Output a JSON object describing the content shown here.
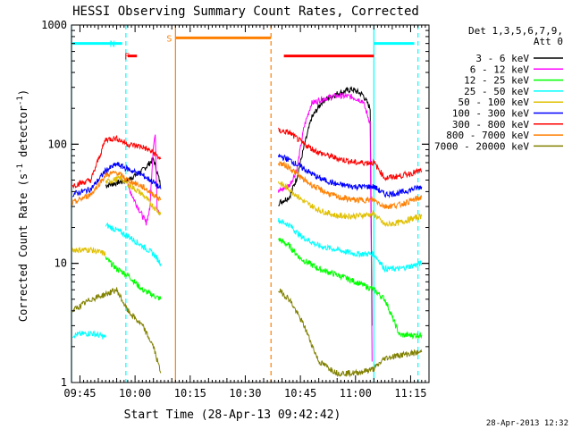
{
  "chart_data": {
    "type": "line",
    "title": "HESSI Observing Summary Count Rates, Corrected",
    "xlabel": "Start Time (28-Apr-13 09:42:42)",
    "ylabel": "Corrected Count Rate (s⁻¹ detector⁻¹)",
    "ylabel_main": "Corrected Count Rate (s",
    "ylabel_sup1": "-1",
    "ylabel_mid": " detector",
    "ylabel_sup2": "-1",
    "ylabel_end": ")",
    "yscale": "log",
    "ylim": [
      1,
      1000
    ],
    "xlim": [
      "09:42:42",
      "11:20:00"
    ],
    "x_tick_labels": [
      "09:45",
      "10:00",
      "10:15",
      "10:30",
      "10:45",
      "11:00",
      "11:15"
    ],
    "y_tick_labels": [
      "1",
      "10",
      "100",
      "1000"
    ],
    "grid": false,
    "legend_title": [
      "Det 1,3,5,6,7,9,",
      "Att 0"
    ],
    "timestamp": "28-Apr-2013 12:32",
    "flags": [
      {
        "label": "F",
        "color": "#ff0000",
        "start": "09:58:00",
        "end": "10:00:30",
        "level": 550
      },
      {
        "label": "N",
        "color": "#00ffff",
        "start": "09:43:00",
        "end": "09:56:30",
        "level": 700
      },
      {
        "label": "S",
        "color": "#ff7f00",
        "start": "10:11:00",
        "end": "10:37:00",
        "level": 780
      },
      {
        "label": "",
        "color": "#ff0000",
        "start": "10:40:30",
        "end": "11:05:00",
        "level": 550
      },
      {
        "label": "",
        "color": "#00ffff",
        "start": "11:05:00",
        "end": "11:16:00",
        "level": 700
      }
    ],
    "night_lines": [
      {
        "time": "09:42:42",
        "color": "#00ffff",
        "style": "solid"
      },
      {
        "time": "09:57:30",
        "color": "#00ffff",
        "style": "dashed"
      },
      {
        "time": "10:11:00",
        "color": "#ff7f00",
        "style": "solid"
      },
      {
        "time": "10:37:00",
        "color": "#ff7f00",
        "style": "dashed"
      },
      {
        "time": "11:05:00",
        "color": "#00ffff",
        "style": "solid"
      },
      {
        "time": "11:17:00",
        "color": "#00ffff",
        "style": "dashed"
      }
    ],
    "series": [
      {
        "name": "3 - 6 keV",
        "color": "#000000",
        "segments": [
          [
            [
              "09:52",
              45
            ],
            [
              "09:58",
              50
            ],
            [
              "10:02",
              60
            ],
            [
              "10:05",
              75
            ],
            [
              "10:07",
              45
            ]
          ],
          [
            [
              "10:39",
              32
            ],
            [
              "10:42",
              36
            ],
            [
              "10:44",
              52
            ],
            [
              "10:46",
              95
            ],
            [
              "10:48",
              165
            ],
            [
              "10:51",
              230
            ],
            [
              "10:55",
              265
            ],
            [
              "10:59",
              290
            ],
            [
              "11:02",
              260
            ],
            [
              "11:04",
              200
            ],
            [
              "11:04:30",
              3
            ]
          ]
        ]
      },
      {
        "name": "6 - 12 keV",
        "color": "#ff00ff",
        "segments": [
          [
            [
              "09:58",
              45
            ],
            [
              "10:00",
              33
            ],
            [
              "10:02",
              25
            ],
            [
              "10:03",
              22
            ],
            [
              "10:04",
              28
            ],
            [
              "10:05",
              100
            ],
            [
              "10:05:30",
              120
            ],
            [
              "10:06",
              30
            ],
            [
              "10:07",
              26
            ]
          ],
          [
            [
              "10:39",
              40
            ],
            [
              "10:42",
              45
            ],
            [
              "10:44",
              60
            ],
            [
              "10:46",
              140
            ],
            [
              "10:48",
              220
            ],
            [
              "10:51",
              240
            ],
            [
              "10:55",
              255
            ],
            [
              "10:59",
              250
            ],
            [
              "11:02",
              230
            ],
            [
              "11:04",
              150
            ],
            [
              "11:04:30",
              1.5
            ]
          ]
        ]
      },
      {
        "name": "12 - 25 keV",
        "color": "#00ff00",
        "segments": [
          [
            [
              "09:52",
              11
            ],
            [
              "09:55",
              9
            ],
            [
              "09:58",
              8
            ],
            [
              "10:02",
              6
            ],
            [
              "10:07",
              5
            ]
          ],
          [
            [
              "10:39",
              16
            ],
            [
              "10:42",
              14
            ],
            [
              "10:45",
              11
            ],
            [
              "10:50",
              9
            ],
            [
              "10:55",
              8
            ],
            [
              "11:00",
              7
            ],
            [
              "11:05",
              6
            ],
            [
              "11:08",
              5
            ],
            [
              "11:12",
              2.5
            ],
            [
              "11:18",
              2.5
            ]
          ]
        ]
      },
      {
        "name": "25 - 50 keV",
        "color": "#00ffff",
        "segments": [
          [
            [
              "09:43",
              2.5
            ],
            [
              "09:48",
              2.6
            ],
            [
              "09:52",
              2.4
            ]
          ],
          [
            [
              "09:52",
              21
            ],
            [
              "09:55",
              19
            ],
            [
              "09:58",
              17
            ],
            [
              "10:02",
              14
            ],
            [
              "10:05",
              12
            ],
            [
              "10:07",
              10
            ]
          ],
          [
            [
              "10:39",
              23
            ],
            [
              "10:42",
              21
            ],
            [
              "10:45",
              17
            ],
            [
              "10:50",
              14
            ],
            [
              "10:55",
              13
            ],
            [
              "11:00",
              12
            ],
            [
              "11:05",
              12
            ],
            [
              "11:08",
              9
            ],
            [
              "11:12",
              9
            ],
            [
              "11:18",
              10
            ]
          ]
        ]
      },
      {
        "name": "50 - 100 keV",
        "color": "#e0c000",
        "segments": [
          [
            [
              "09:43",
              13
            ],
            [
              "09:48",
              13
            ],
            [
              "09:52",
              12
            ]
          ],
          [
            [
              "09:52",
              48
            ],
            [
              "09:56",
              52
            ],
            [
              "09:59",
              44
            ],
            [
              "10:02",
              38
            ],
            [
              "10:05",
              30
            ],
            [
              "10:07",
              26
            ]
          ],
          [
            [
              "10:39",
              48
            ],
            [
              "10:42",
              42
            ],
            [
              "10:46",
              33
            ],
            [
              "10:50",
              28
            ],
            [
              "10:55",
              25
            ],
            [
              "11:00",
              25
            ],
            [
              "11:05",
              26
            ],
            [
              "11:08",
              21
            ],
            [
              "11:12",
              22
            ],
            [
              "11:18",
              25
            ]
          ]
        ]
      },
      {
        "name": "100 - 300 keV",
        "color": "#0000ff",
        "segments": [
          [
            [
              "09:43",
              38
            ],
            [
              "09:48",
              42
            ],
            [
              "09:52",
              60
            ],
            [
              "09:55",
              68
            ],
            [
              "09:58",
              62
            ],
            [
              "10:02",
              55
            ],
            [
              "10:05",
              48
            ],
            [
              "10:07",
              42
            ]
          ],
          [
            [
              "10:39",
              80
            ],
            [
              "10:42",
              74
            ],
            [
              "10:46",
              62
            ],
            [
              "10:50",
              52
            ],
            [
              "10:55",
              46
            ],
            [
              "11:00",
              44
            ],
            [
              "11:05",
              44
            ],
            [
              "11:08",
              38
            ],
            [
              "11:12",
              39
            ],
            [
              "11:18",
              44
            ]
          ]
        ]
      },
      {
        "name": "300 - 800 keV",
        "color": "#ff0000",
        "segments": [
          [
            [
              "09:43",
              45
            ],
            [
              "09:48",
              50
            ],
            [
              "09:52",
              110
            ],
            [
              "09:55",
              112
            ],
            [
              "09:58",
              100
            ],
            [
              "10:02",
              95
            ],
            [
              "10:05",
              85
            ],
            [
              "10:07",
              75
            ]
          ],
          [
            [
              "10:39",
              130
            ],
            [
              "10:42",
              125
            ],
            [
              "10:46",
              100
            ],
            [
              "10:50",
              85
            ],
            [
              "10:55",
              76
            ],
            [
              "11:00",
              70
            ],
            [
              "11:05",
              70
            ],
            [
              "11:08",
              52
            ],
            [
              "11:12",
              54
            ],
            [
              "11:18",
              60
            ]
          ]
        ]
      },
      {
        "name": "800 - 7000 keV",
        "color": "#ff7f00",
        "segments": [
          [
            [
              "09:43",
              32
            ],
            [
              "09:48",
              38
            ],
            [
              "09:52",
              55
            ],
            [
              "09:55",
              58
            ],
            [
              "09:58",
              50
            ],
            [
              "10:02",
              44
            ],
            [
              "10:05",
              38
            ],
            [
              "10:07",
              34
            ]
          ],
          [
            [
              "10:39",
              70
            ],
            [
              "10:42",
              64
            ],
            [
              "10:46",
              50
            ],
            [
              "10:50",
              42
            ],
            [
              "10:55",
              36
            ],
            [
              "11:00",
              34
            ],
            [
              "11:05",
              34
            ],
            [
              "11:08",
              30
            ],
            [
              "11:12",
              31
            ],
            [
              "11:18",
              36
            ]
          ]
        ]
      },
      {
        "name": "7000 - 20000 keV",
        "color": "#808000",
        "segments": [
          [
            [
              "09:43",
              4
            ],
            [
              "09:48",
              5
            ],
            [
              "09:52",
              5.5
            ],
            [
              "09:55",
              6
            ],
            [
              "09:58",
              4
            ],
            [
              "10:02",
              3
            ],
            [
              "10:05",
              2
            ],
            [
              "10:07",
              1.2
            ]
          ],
          [
            [
              "10:39",
              6
            ],
            [
              "10:42",
              5
            ],
            [
              "10:46",
              3
            ],
            [
              "10:50",
              1.5
            ],
            [
              "10:55",
              1.2
            ],
            [
              "11:00",
              1.2
            ],
            [
              "11:05",
              1.3
            ],
            [
              "11:08",
              1.6
            ],
            [
              "11:12",
              1.7
            ],
            [
              "11:18",
              1.8
            ]
          ]
        ]
      }
    ]
  }
}
